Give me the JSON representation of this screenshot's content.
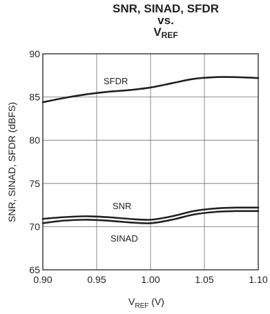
{
  "chart_data": {
    "type": "line",
    "title_line1": "SNR, SINAD, SFDR",
    "title_line2": "vs.",
    "title_line3_main": "V",
    "title_line3_sub": "REF",
    "xlabel_main": "V",
    "xlabel_sub": "REF",
    "xlabel_unit": " (V)",
    "ylabel": "SNR, SINAD, SFDR (dBFS)",
    "xlim": [
      0.9,
      1.1
    ],
    "ylim": [
      65,
      90
    ],
    "xticks": [
      "0.90",
      "0.95",
      "1.00",
      "1.05",
      "1.10"
    ],
    "yticks": [
      "65",
      "70",
      "75",
      "80",
      "85",
      "90"
    ],
    "grid": true,
    "series": [
      {
        "name": "SFDR",
        "x": [
          0.9,
          0.92,
          0.94,
          0.96,
          0.98,
          1.0,
          1.02,
          1.04,
          1.06,
          1.08,
          1.1
        ],
        "y": [
          84.4,
          84.9,
          85.3,
          85.6,
          85.8,
          86.1,
          86.6,
          87.1,
          87.3,
          87.3,
          87.2
        ]
      },
      {
        "name": "SNR",
        "x": [
          0.9,
          0.92,
          0.94,
          0.96,
          0.98,
          1.0,
          1.02,
          1.04,
          1.06,
          1.08,
          1.1
        ],
        "y": [
          70.9,
          71.1,
          71.2,
          71.1,
          70.9,
          70.8,
          71.2,
          71.8,
          72.1,
          72.2,
          72.2
        ]
      },
      {
        "name": "SINAD",
        "x": [
          0.9,
          0.92,
          0.94,
          0.96,
          0.98,
          1.0,
          1.02,
          1.04,
          1.06,
          1.08,
          1.1
        ],
        "y": [
          70.4,
          70.7,
          70.8,
          70.7,
          70.5,
          70.4,
          70.8,
          71.4,
          71.7,
          71.8,
          71.8
        ]
      }
    ],
    "line_color": "#231f20",
    "grid_color": "#6d6e71"
  }
}
